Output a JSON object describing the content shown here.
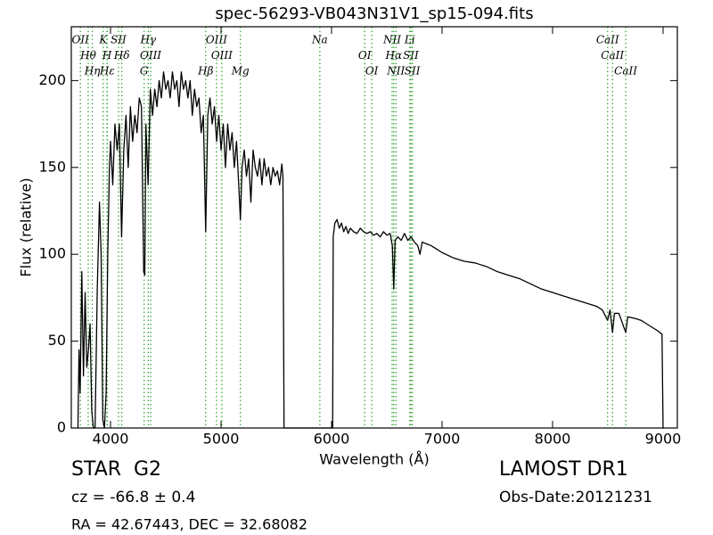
{
  "chart_data": {
    "type": "line",
    "title": "spec-56293-VB043N31V1_sp15-094.fits",
    "xlabel": "Wavelength (Å)",
    "ylabel": "Flux (relative)",
    "xlim": [
      3645,
      9129
    ],
    "ylim": [
      0,
      231
    ],
    "xticks": [
      4000,
      5000,
      6000,
      7000,
      8000,
      9000
    ],
    "yticks": [
      0,
      50,
      100,
      150,
      200
    ],
    "color": "#000000",
    "annotation_color": "#2ca02c",
    "x": [
      3705,
      3715,
      3725,
      3740,
      3755,
      3770,
      3785,
      3800,
      3815,
      3830,
      3845,
      3860,
      3880,
      3900,
      3915,
      3930,
      3945,
      3960,
      3975,
      3990,
      4000,
      4020,
      4040,
      4060,
      4080,
      4100,
      4120,
      4140,
      4160,
      4180,
      4200,
      4220,
      4240,
      4260,
      4280,
      4300,
      4310,
      4320,
      4340,
      4360,
      4380,
      4400,
      4420,
      4440,
      4460,
      4480,
      4500,
      4520,
      4540,
      4560,
      4580,
      4600,
      4620,
      4640,
      4660,
      4680,
      4700,
      4720,
      4740,
      4760,
      4780,
      4800,
      4820,
      4840,
      4861,
      4880,
      4900,
      4920,
      4940,
      4960,
      4980,
      5000,
      5020,
      5040,
      5060,
      5080,
      5100,
      5120,
      5140,
      5160,
      5175,
      5190,
      5210,
      5230,
      5250,
      5270,
      5290,
      5310,
      5330,
      5350,
      5370,
      5390,
      5410,
      5430,
      5450,
      5470,
      5490,
      5510,
      5530,
      5550,
      5560,
      5570,
      5600,
      6000,
      6010,
      6015,
      6030,
      6050,
      6070,
      6090,
      6110,
      6130,
      6150,
      6170,
      6200,
      6230,
      6260,
      6290,
      6320,
      6350,
      6380,
      6410,
      6440,
      6470,
      6500,
      6530,
      6550,
      6563,
      6575,
      6600,
      6630,
      6660,
      6690,
      6720,
      6750,
      6780,
      6800,
      6820,
      6860,
      6900,
      6950,
      7000,
      7100,
      7200,
      7300,
      7400,
      7500,
      7600,
      7700,
      7800,
      7900,
      8000,
      8100,
      8200,
      8300,
      8400,
      8450,
      8498,
      8520,
      8542,
      8560,
      8600,
      8662,
      8680,
      8750,
      8800,
      8850,
      8900,
      8950,
      8990,
      9000,
      9010
    ],
    "values": [
      0,
      45,
      20,
      90,
      30,
      78,
      35,
      45,
      60,
      10,
      0,
      0,
      80,
      130,
      100,
      5,
      0,
      20,
      100,
      150,
      165,
      140,
      175,
      160,
      175,
      110,
      160,
      180,
      150,
      185,
      165,
      180,
      170,
      190,
      185,
      90,
      88,
      175,
      140,
      195,
      180,
      195,
      185,
      200,
      190,
      205,
      195,
      200,
      190,
      205,
      195,
      200,
      185,
      205,
      195,
      200,
      190,
      200,
      180,
      195,
      185,
      190,
      170,
      180,
      113,
      180,
      190,
      175,
      185,
      165,
      180,
      160,
      175,
      150,
      175,
      160,
      170,
      150,
      165,
      140,
      120,
      150,
      160,
      145,
      155,
      130,
      160,
      150,
      145,
      155,
      140,
      155,
      145,
      150,
      140,
      150,
      145,
      148,
      140,
      152,
      145,
      0,
      0,
      0,
      0,
      110,
      118,
      120,
      115,
      118,
      113,
      116,
      112,
      115,
      113,
      112,
      115,
      113,
      112,
      113,
      111,
      112,
      110,
      113,
      111,
      112,
      105,
      80,
      108,
      110,
      108,
      112,
      108,
      110,
      107,
      105,
      100,
      107,
      106,
      105,
      103,
      101,
      98,
      96,
      95,
      93,
      90,
      88,
      86,
      83,
      80,
      78,
      76,
      74,
      72,
      70,
      68,
      62,
      68,
      55,
      66,
      66,
      55,
      64,
      63,
      62,
      60,
      58,
      56,
      54,
      0,
      0
    ],
    "annotations": [
      {
        "label": "OII",
        "x": 3727
      },
      {
        "label": "Hθ",
        "x": 3798
      },
      {
        "label": "Hη",
        "x": 3835
      },
      {
        "label": "K",
        "x": 3934
      },
      {
        "label": "H",
        "x": 3968
      },
      {
        "label": "Hε",
        "x": 3970
      },
      {
        "label": "SII",
        "x": 4072
      },
      {
        "label": "Hδ",
        "x": 4102
      },
      {
        "label": "G",
        "x": 4304
      },
      {
        "label": "Hγ",
        "x": 4341
      },
      {
        "label": "OIII",
        "x": 4363
      },
      {
        "label": "Hβ",
        "x": 4861
      },
      {
        "label": "OIII",
        "x": 4959
      },
      {
        "label": "OIII",
        "x": 5007
      },
      {
        "label": "Mg",
        "x": 5175
      },
      {
        "label": "Na",
        "x": 5894
      },
      {
        "label": "OI",
        "x": 6300
      },
      {
        "label": "OI",
        "x": 6364
      },
      {
        "label": "NII",
        "x": 6548
      },
      {
        "label": "Hα",
        "x": 6563
      },
      {
        "label": "NII",
        "x": 6583
      },
      {
        "label": "Li",
        "x": 6708
      },
      {
        "label": "SII",
        "x": 6717
      },
      {
        "label": "SII",
        "x": 6731
      },
      {
        "label": "CaII",
        "x": 8498
      },
      {
        "label": "CaII",
        "x": 8542
      },
      {
        "label": "CaII",
        "x": 8662
      }
    ]
  },
  "info": {
    "object_class": "STAR",
    "subclass": "G2",
    "redshift": "cz = -66.8 ± 0.4",
    "coordinates": "RA = 42.67443, DEC = 32.68082",
    "survey": "LAMOST DR1",
    "obs_date": "Obs-Date:20121231"
  }
}
